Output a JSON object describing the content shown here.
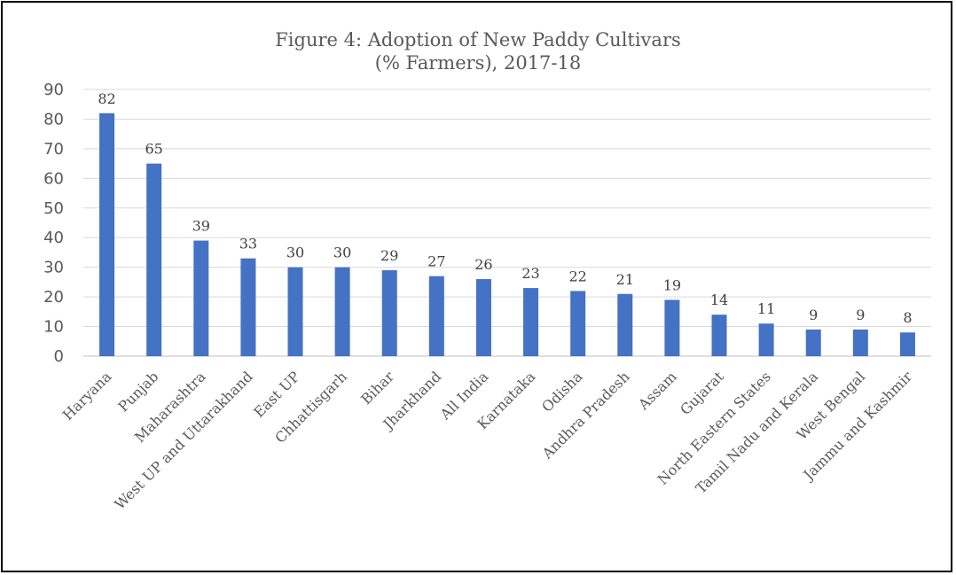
{
  "chart_data": {
    "type": "bar",
    "title_line1": "Figure 4: Adoption of New Paddy Cultivars",
    "title_line2": "(% Farmers), 2017-18",
    "categories": [
      "Haryana",
      "Punjab",
      "Maharashtra",
      "West UP and Uttarakhand",
      "East UP",
      "Chhattisgarh",
      "Bihar",
      "Jharkhand",
      "All India",
      "Karnataka",
      "Odisha",
      "Andhra Pradesh",
      "Assam",
      "Gujarat",
      "North Eastern States",
      "Tamil Nadu and Kerala",
      "West Bengal",
      "Jammu and Kashmir"
    ],
    "values": [
      82,
      65,
      39,
      33,
      30,
      30,
      29,
      27,
      26,
      23,
      22,
      21,
      19,
      14,
      11,
      9,
      9,
      8
    ],
    "ylim": [
      0,
      90
    ],
    "yticks": [
      0,
      10,
      20,
      30,
      40,
      50,
      60,
      70,
      80,
      90
    ],
    "grid": true,
    "bar_color": "#4472C4",
    "grid_color": "#D9D9D9"
  }
}
